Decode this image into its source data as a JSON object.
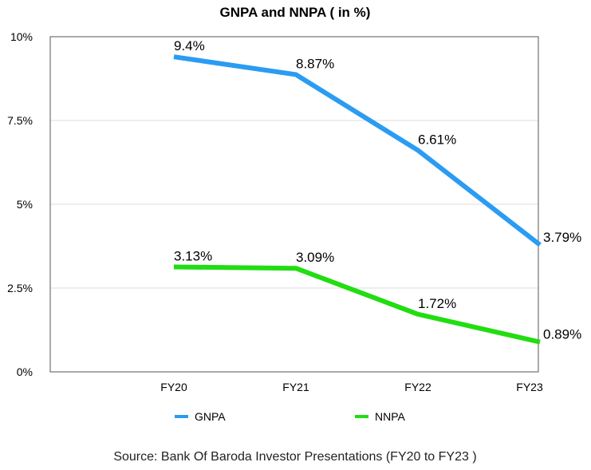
{
  "chart_data": {
    "type": "line",
    "title": "GNPA and NNPA ( in %)",
    "categories": [
      "FY20",
      "FY21",
      "FY22",
      "FY23"
    ],
    "ylim": [
      0,
      10
    ],
    "yticks": [
      {
        "value": 0,
        "label": "0%"
      },
      {
        "value": 2.5,
        "label": "2.5%"
      },
      {
        "value": 5,
        "label": "5%"
      },
      {
        "value": 7.5,
        "label": "7.5%"
      },
      {
        "value": 10,
        "label": "10%"
      }
    ],
    "grid": true,
    "legend_position": "bottom",
    "series": [
      {
        "name": "GNPA",
        "color": "#2b9cf2",
        "values": [
          9.4,
          8.87,
          6.61,
          3.79
        ],
        "labels": [
          "9.4%",
          "8.87%",
          "6.61%",
          "3.79%"
        ]
      },
      {
        "name": "NNPA",
        "color": "#22dd11",
        "values": [
          3.13,
          3.09,
          1.72,
          0.89
        ],
        "labels": [
          "3.13%",
          "3.09%",
          "1.72%",
          "0.89%"
        ]
      }
    ],
    "source": "Source: Bank Of Baroda Investor Presentations (FY20 to FY23 )"
  }
}
